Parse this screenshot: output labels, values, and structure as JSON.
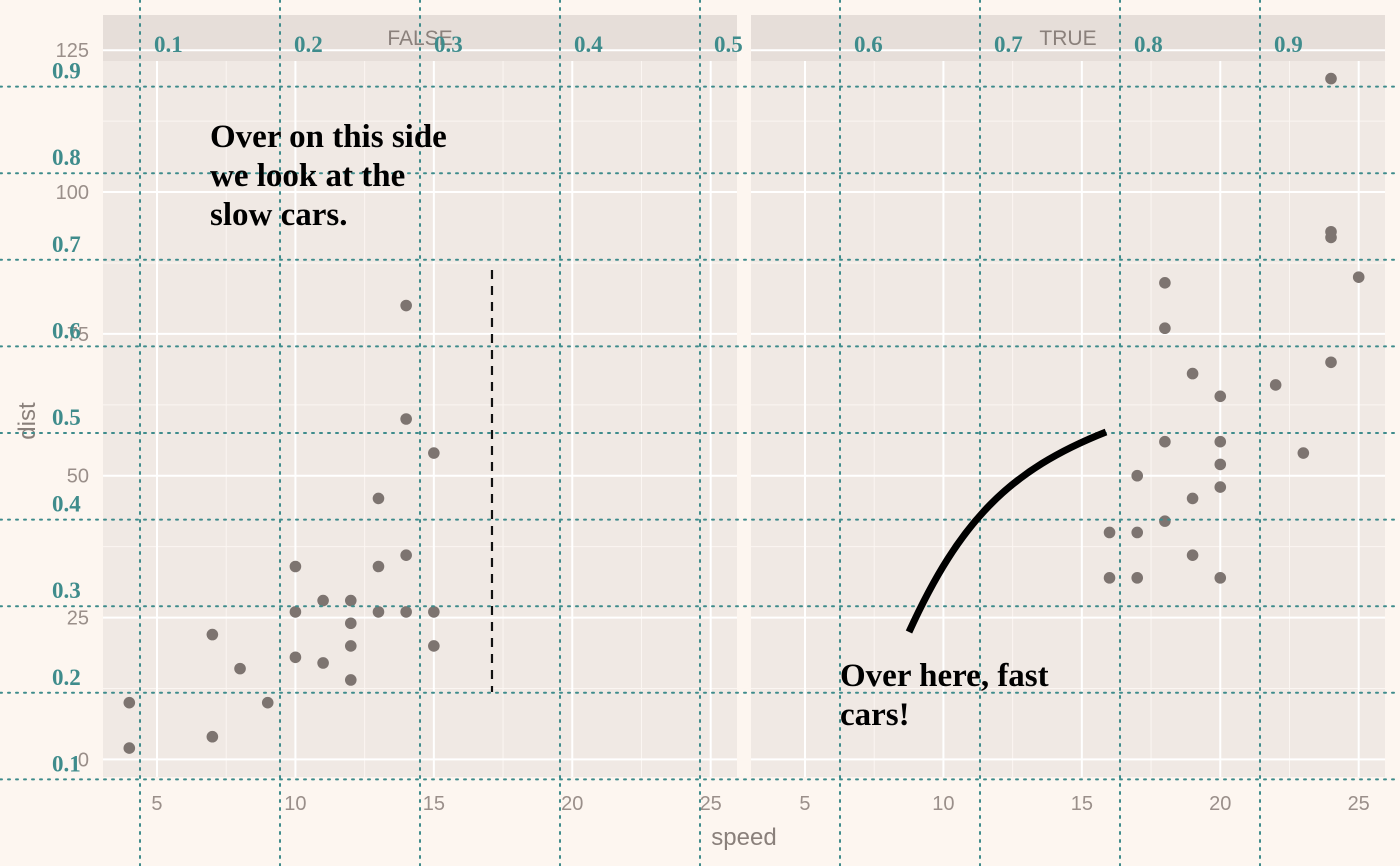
{
  "chart_data": {
    "type": "scatter",
    "title": "",
    "xlabel": "speed",
    "ylabel": "dist",
    "xlim": [
      3.05,
      25.95
    ],
    "ylim": [
      -3.1,
      123.1
    ],
    "x_ticks": [
      5,
      10,
      15,
      20,
      25
    ],
    "y_ticks": [
      0,
      25,
      50,
      75,
      100,
      125
    ],
    "grid": true,
    "legend": "none",
    "facets": [
      {
        "label": "FALSE",
        "points": [
          [
            4,
            2
          ],
          [
            4,
            10
          ],
          [
            7,
            4
          ],
          [
            7,
            22
          ],
          [
            8,
            16
          ],
          [
            9,
            10
          ],
          [
            10,
            18
          ],
          [
            10,
            26
          ],
          [
            10,
            34
          ],
          [
            11,
            17
          ],
          [
            11,
            28
          ],
          [
            12,
            14
          ],
          [
            12,
            20
          ],
          [
            12,
            24
          ],
          [
            12,
            28
          ],
          [
            13,
            26
          ],
          [
            13,
            34
          ],
          [
            13,
            46
          ],
          [
            14,
            26
          ],
          [
            14,
            36
          ],
          [
            14,
            60
          ],
          [
            14,
            80
          ],
          [
            15,
            20
          ],
          [
            15,
            26
          ],
          [
            15,
            54
          ]
        ],
        "vline_x": 17.1
      },
      {
        "label": "TRUE",
        "points": [
          [
            16,
            32
          ],
          [
            16,
            40
          ],
          [
            17,
            32
          ],
          [
            17,
            40
          ],
          [
            17,
            50
          ],
          [
            18,
            42
          ],
          [
            18,
            56
          ],
          [
            18,
            76
          ],
          [
            18,
            84
          ],
          [
            19,
            36
          ],
          [
            19,
            46
          ],
          [
            19,
            68
          ],
          [
            20,
            32
          ],
          [
            20,
            48
          ],
          [
            20,
            52
          ],
          [
            20,
            56
          ],
          [
            20,
            64
          ],
          [
            22,
            66
          ],
          [
            23,
            54
          ],
          [
            24,
            70
          ],
          [
            24,
            92
          ],
          [
            24,
            93
          ],
          [
            24,
            120
          ],
          [
            25,
            85
          ]
        ]
      }
    ],
    "overlay_guides": {
      "vertical_labels": [
        "0.1",
        "0.2",
        "0.3",
        "0.4",
        "0.5",
        "0.6",
        "0.7",
        "0.8",
        "0.9"
      ],
      "horizontal_labels": [
        "0.1",
        "0.2",
        "0.3",
        "0.4",
        "0.5",
        "0.6",
        "0.7",
        "0.8",
        "0.9"
      ]
    },
    "annotations": [
      "Over on this side we look at the slow cars.",
      "Over here, fast cars!"
    ],
    "colors": {
      "background": "#fdf6f0",
      "panel": "#f0e9e4",
      "strip": "#e6ded9",
      "points": "#7d7470",
      "guides": "#3f8c8c"
    }
  }
}
